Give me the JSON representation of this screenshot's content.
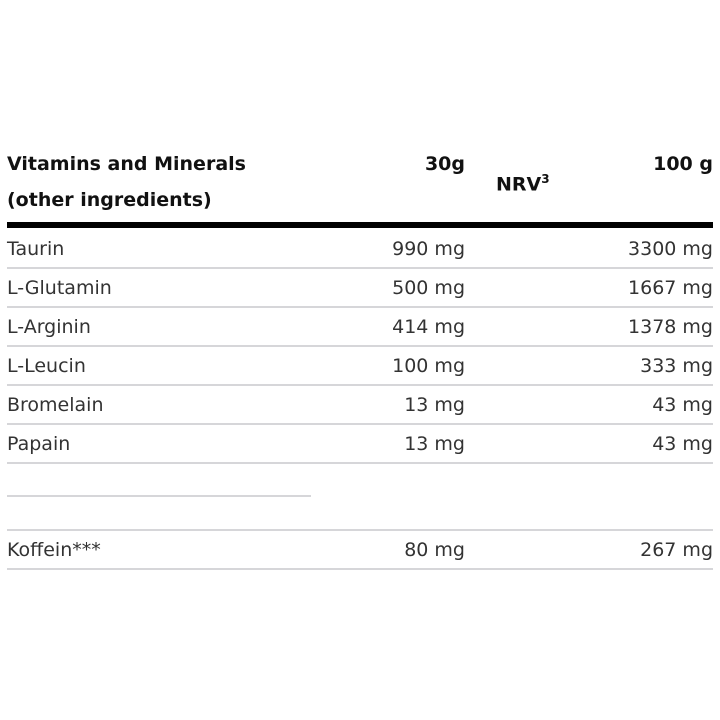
{
  "header": {
    "title_line1": "Vitamins and Minerals",
    "title_line2": "(other ingredients)",
    "col_30g": "30g",
    "col_nrv": "NRV",
    "col_nrv_sup": "3",
    "col_100g": "100 g"
  },
  "rows": [
    {
      "name": "Taurin",
      "per30": "990 mg",
      "per100": "3300 mg"
    },
    {
      "name": "L-Glutamin",
      "per30": "500 mg",
      "per100": "1667 mg"
    },
    {
      "name": "L-Arginin",
      "per30": "414 mg",
      "per100": "1378 mg"
    },
    {
      "name": "L-Leucin",
      "per30": "100 mg",
      "per100": "333 mg"
    },
    {
      "name": "Bromelain",
      "per30": "13 mg",
      "per100": "43 mg"
    },
    {
      "name": "Papain",
      "per30": "13 mg",
      "per100": "43 mg"
    }
  ],
  "extra_rows": [
    {
      "name": "Koffein***",
      "per30": "80 mg",
      "per100": "267 mg"
    }
  ]
}
